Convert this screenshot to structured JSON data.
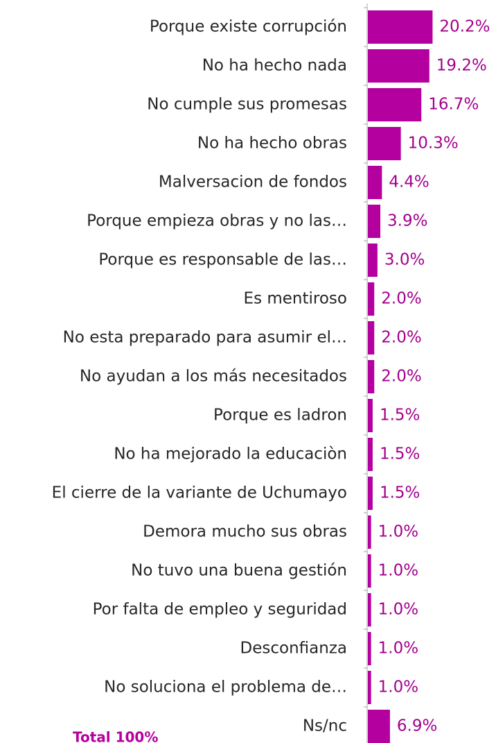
{
  "chart_data": {
    "type": "bar",
    "orientation": "horizontal",
    "categories": [
      "Porque existe corrupción",
      "No ha hecho nada",
      "No cumple sus promesas",
      "No ha hecho obras",
      "Malversacion de fondos",
      "Porque empieza obras y no las…",
      "Porque es responsable de las…",
      "Es mentiroso",
      "No esta preparado para asumir el…",
      "No ayudan a los más necesitados",
      "Porque es ladron",
      "No ha mejorado la educaciòn",
      "El cierre de la variante de Uchumayo",
      "Demora mucho sus obras",
      "No tuvo una buena gestión",
      "Por falta de empleo y seguridad",
      "Desconfianza",
      "No soluciona el problema de…",
      "Ns/nc"
    ],
    "values": [
      20.2,
      19.2,
      16.7,
      10.3,
      4.4,
      3.9,
      3.0,
      2.0,
      2.0,
      2.0,
      1.5,
      1.5,
      1.5,
      1.0,
      1.0,
      1.0,
      1.0,
      1.0,
      6.9
    ],
    "value_labels": [
      "20.2%",
      "19.2%",
      "16.7%",
      "10.3%",
      "4.4%",
      "3.9%",
      "3.0%",
      "2.0%",
      "2.0%",
      "2.0%",
      "1.5%",
      "1.5%",
      "1.5%",
      "1.0%",
      "1.0%",
      "1.0%",
      "1.0%",
      "1.0%",
      "6.9%"
    ],
    "color": "#b4009e",
    "xlim": [
      0,
      40
    ],
    "annotation": "Total 100%"
  }
}
